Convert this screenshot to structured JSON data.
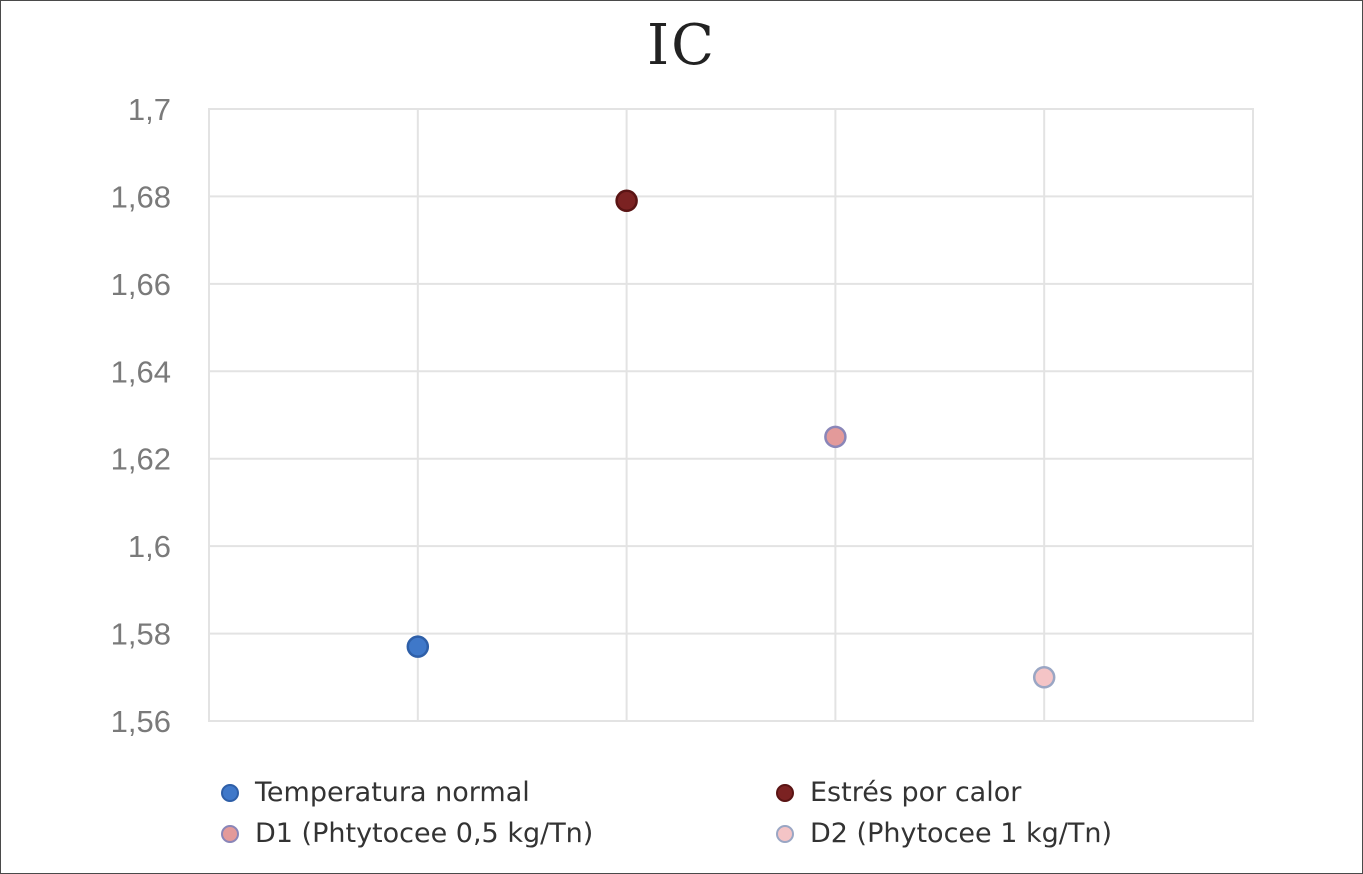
{
  "chart_data": {
    "type": "scatter",
    "title": "IC",
    "xlabel": "",
    "ylabel": "",
    "ylim": [
      1.56,
      1.7
    ],
    "xlim": [
      0,
      5
    ],
    "y_ticks": [
      "1,56",
      "1,58",
      "1,6",
      "1,62",
      "1,64",
      "1,66",
      "1,68",
      "1,7"
    ],
    "grid": true,
    "legend_position": "bottom",
    "series": [
      {
        "name": "Temperatura normal",
        "x": 1,
        "y": 1.577,
        "color": "#3f78c9",
        "stroke": "#2e5fa8"
      },
      {
        "name": "Estrés por calor",
        "x": 2,
        "y": 1.679,
        "color": "#7b2222",
        "stroke": "#5a1414"
      },
      {
        "name": "D1 (Phtytocee 0,5 kg/Tn)",
        "x": 3,
        "y": 1.625,
        "color": "#e39a9a",
        "stroke": "#8a86b8"
      },
      {
        "name": "D2 (Phytocee 1 kg/Tn)",
        "x": 4,
        "y": 1.57,
        "color": "#f4c4c6",
        "stroke": "#9aa6c4"
      }
    ]
  }
}
